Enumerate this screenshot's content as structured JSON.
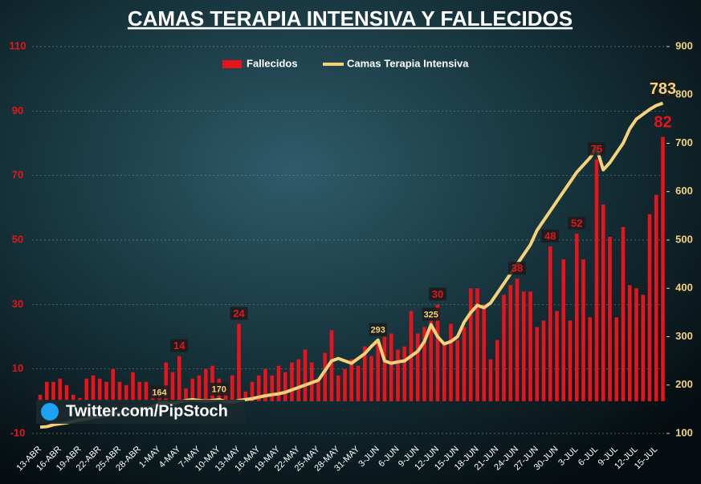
{
  "chart_data": {
    "type": "bar_line",
    "title": "CAMAS TERAPIA INTENSIVA Y FALLECIDOS",
    "source": "Twitter.com/PipStoch",
    "categories": [
      "13-ABR",
      null,
      null,
      "16-ABR",
      null,
      null,
      "19-ABR",
      null,
      null,
      "22-ABR",
      null,
      null,
      "25-ABR",
      null,
      null,
      "28-ABR",
      null,
      null,
      "1-MAY",
      null,
      null,
      "4-MAY",
      null,
      null,
      "7-MAY",
      null,
      null,
      "10-MAY",
      null,
      null,
      "13-MAY",
      null,
      null,
      "16-MAY",
      null,
      null,
      "19-MAY",
      null,
      null,
      "22-MAY",
      null,
      null,
      "25-MAY",
      null,
      null,
      "28-MAY",
      null,
      null,
      "31-MAY",
      null,
      null,
      "3-JUN",
      null,
      null,
      "6-JUN",
      null,
      null,
      "9-JUN",
      null,
      null,
      "12-JUN",
      null,
      null,
      "15-JUN",
      null,
      null,
      "18-JUN",
      null,
      null,
      "21-JUN",
      null,
      null,
      "24-JUN",
      null,
      null,
      "27-JUN",
      null,
      null,
      "30-JUN",
      null,
      null,
      "3-JUL",
      null,
      null,
      "6-JUL",
      null,
      null,
      "9-JUL",
      null,
      null,
      "12-JUL",
      null,
      null,
      "15-JUL",
      null
    ],
    "series": [
      {
        "name": "Fallecidos",
        "color": "#e8141b",
        "axis": "y",
        "values": [
          2,
          6,
          6,
          7,
          5,
          2,
          1,
          7,
          8,
          7,
          6,
          10,
          6,
          5,
          9,
          6,
          6,
          4,
          4,
          12,
          9,
          14,
          4,
          7,
          8,
          10,
          11,
          7,
          4,
          8,
          24,
          3,
          6,
          8,
          10,
          8,
          11,
          9,
          12,
          13,
          16,
          12,
          6,
          15,
          22,
          8,
          10,
          13,
          11,
          17,
          14,
          18,
          20,
          21,
          16,
          17,
          28,
          21,
          23,
          25,
          30,
          18,
          24,
          19,
          23,
          35,
          35,
          30,
          13,
          19,
          33,
          36,
          38,
          34,
          34,
          23,
          25,
          48,
          28,
          44,
          25,
          52,
          44,
          26,
          75,
          61,
          51,
          26,
          54,
          36,
          35,
          33,
          58,
          64,
          82
        ]
      },
      {
        "name": "Camas Terapia Intensiva",
        "color": "#f5d27a",
        "axis": "y2",
        "values": [
          113,
          114,
          118,
          120,
          122,
          125,
          128,
          130,
          133,
          135,
          138,
          140,
          142,
          145,
          148,
          150,
          152,
          155,
          164,
          163,
          162,
          165,
          168,
          170,
          168,
          167,
          168,
          170,
          166,
          165,
          168,
          170,
          172,
          175,
          178,
          180,
          182,
          185,
          190,
          195,
          200,
          205,
          210,
          230,
          250,
          255,
          250,
          245,
          255,
          265,
          280,
          293,
          250,
          245,
          248,
          250,
          260,
          270,
          290,
          325,
          300,
          285,
          290,
          300,
          330,
          350,
          365,
          360,
          370,
          390,
          410,
          430,
          450,
          470,
          490,
          520,
          540,
          560,
          580,
          600,
          620,
          640,
          655,
          670,
          690,
          645,
          660,
          680,
          700,
          730,
          750,
          760,
          770,
          778,
          783
        ]
      }
    ],
    "ylim": [
      -10,
      110
    ],
    "yticks": [
      -10,
      10,
      30,
      50,
      70,
      90,
      110
    ],
    "y2lim": [
      100,
      900
    ],
    "y2ticks": [
      100,
      200,
      300,
      400,
      500,
      600,
      700,
      800,
      900
    ],
    "grid": true
  }
}
